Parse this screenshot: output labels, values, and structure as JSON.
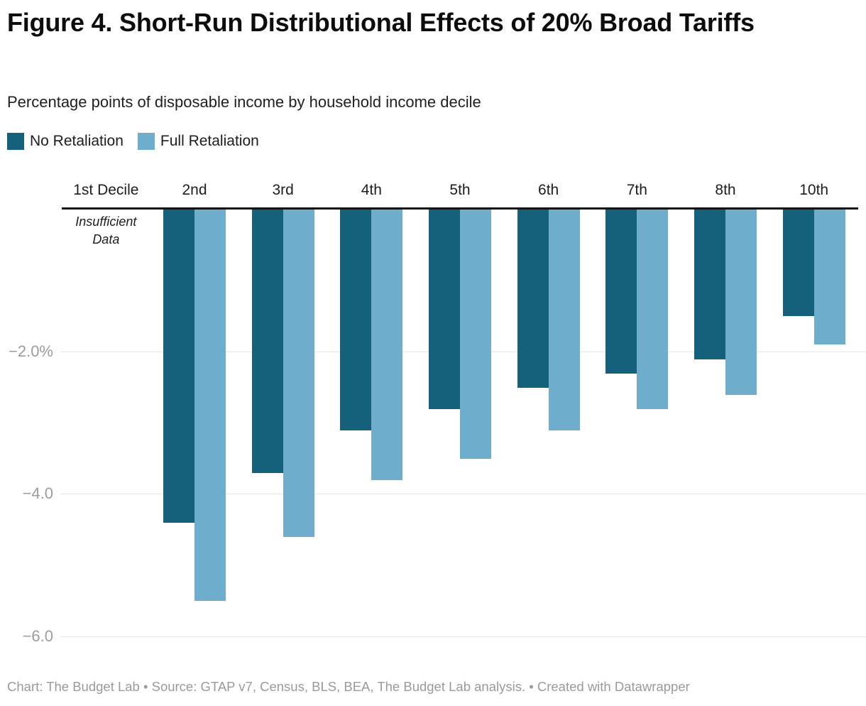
{
  "header": {
    "title": "Figure 4. Short-Run Distributional Effects of 20% Broad Tariffs",
    "subtitle": "Percentage points of disposable income by household income decile"
  },
  "legend": {
    "items": [
      {
        "label": "No Retaliation",
        "color": "#15617b"
      },
      {
        "label": "Full Retaliation",
        "color": "#6eadcb"
      }
    ]
  },
  "footer": {
    "text": "Chart: The Budget Lab • Source: GTAP v7, Census, BLS, BEA, The Budget Lab analysis. • Created with Datawrapper"
  },
  "chart_data": {
    "type": "bar",
    "orientation": "vertical-negative",
    "title": "Figure 4. Short-Run Distributional Effects of 20% Broad Tariffs",
    "subtitle": "Percentage points of disposable income by household income decile",
    "categories": [
      "1st Decile",
      "2nd",
      "3rd",
      "4th",
      "5th",
      "6th",
      "7th",
      "8th",
      "10th"
    ],
    "series": [
      {
        "name": "No Retaliation",
        "color": "#15617b",
        "values": [
          null,
          -4.4,
          -3.7,
          -3.1,
          -2.8,
          -2.5,
          -2.3,
          -2.1,
          -1.5
        ]
      },
      {
        "name": "Full Retaliation",
        "color": "#6eadcb",
        "values": [
          null,
          -5.5,
          -4.6,
          -3.8,
          -3.5,
          -3.1,
          -2.8,
          -2.6,
          -1.9
        ]
      }
    ],
    "annotation": {
      "category": "1st Decile",
      "lines": [
        "Insufficient",
        "Data"
      ]
    },
    "y_axis": {
      "ticks": [
        {
          "label": "−2.0%",
          "value": -2
        },
        {
          "label": "−4.0",
          "value": -4
        },
        {
          "label": "−6.0",
          "value": -6
        }
      ],
      "range": [
        -6.6,
        0
      ]
    },
    "grid": "horizontal",
    "legend_position": "top-left"
  }
}
